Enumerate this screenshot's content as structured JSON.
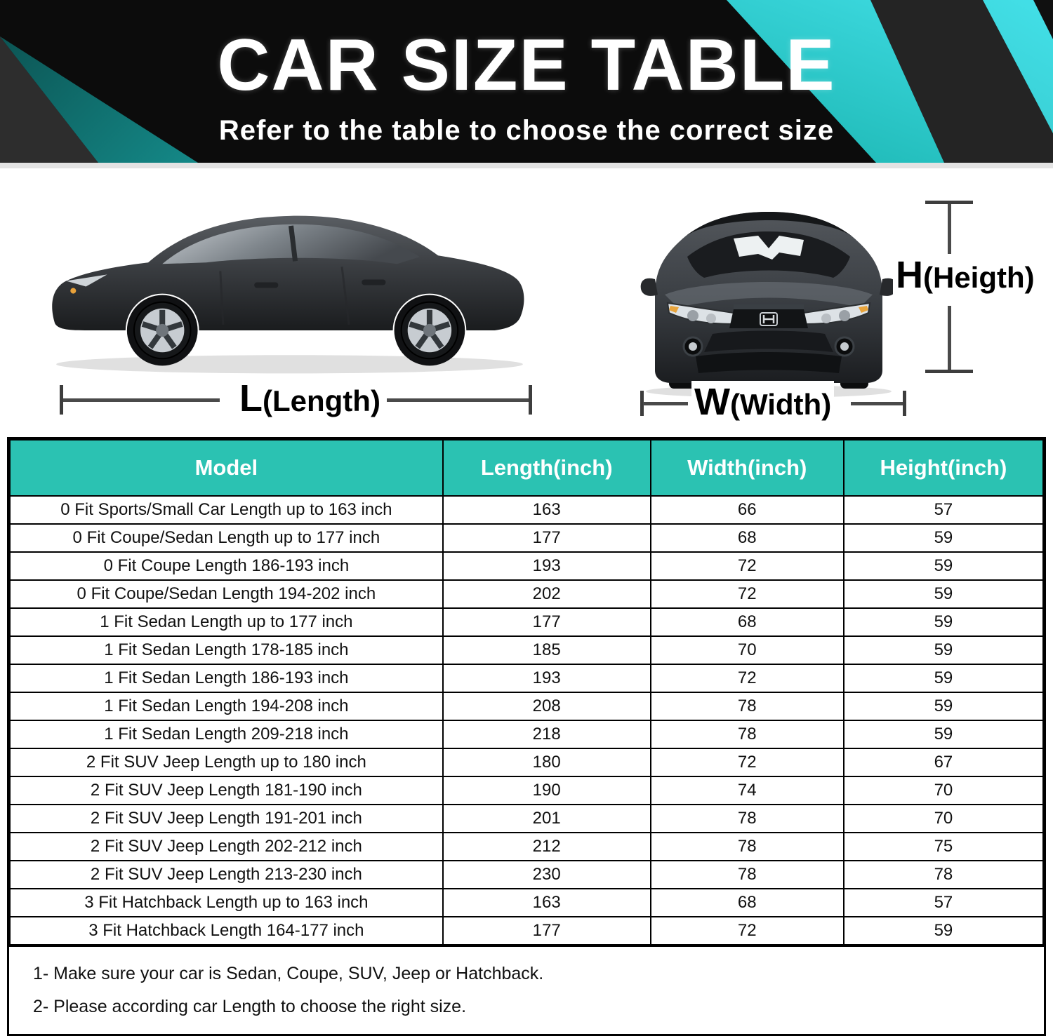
{
  "colors": {
    "accent_teal": "#2bc2b2",
    "banner_background": "#0c0c0c",
    "banner_stripe_teal": "#2fd0dc"
  },
  "banner": {
    "title": "CAR SIZE TABLE",
    "subtitle": "Refer to the table to choose the correct size"
  },
  "diagram": {
    "length_label": {
      "prefix": "L",
      "text": "(Length)"
    },
    "width_label": {
      "prefix": "W",
      "text": "(Width)"
    },
    "height_label": {
      "prefix": "H",
      "text": "(Heigth)"
    }
  },
  "chart_data": {
    "type": "table",
    "title": "CAR SIZE TABLE",
    "columns": [
      "Model",
      "Length(inch)",
      "Width(inch)",
      "Height(inch)"
    ],
    "rows": [
      [
        "0 Fit Sports/Small Car Length up to 163 inch",
        "163",
        "66",
        "57"
      ],
      [
        "0 Fit Coupe/Sedan Length up to 177 inch",
        "177",
        "68",
        "59"
      ],
      [
        "0 Fit Coupe Length 186-193 inch",
        "193",
        "72",
        "59"
      ],
      [
        "0 Fit Coupe/Sedan Length 194-202 inch",
        "202",
        "72",
        "59"
      ],
      [
        "1 Fit Sedan Length up to 177 inch",
        "177",
        "68",
        "59"
      ],
      [
        "1 Fit Sedan Length 178-185 inch",
        "185",
        "70",
        "59"
      ],
      [
        "1 Fit Sedan Length 186-193 inch",
        "193",
        "72",
        "59"
      ],
      [
        "1 Fit Sedan Length 194-208 inch",
        "208",
        "78",
        "59"
      ],
      [
        "1 Fit Sedan Length 209-218 inch",
        "218",
        "78",
        "59"
      ],
      [
        "2 Fit SUV Jeep Length up to 180 inch",
        "180",
        "72",
        "67"
      ],
      [
        "2 Fit SUV Jeep Length 181-190 inch",
        "190",
        "74",
        "70"
      ],
      [
        "2 Fit SUV Jeep Length 191-201 inch",
        "201",
        "78",
        "70"
      ],
      [
        "2 Fit SUV Jeep Length 202-212 inch",
        "212",
        "78",
        "75"
      ],
      [
        "2 Fit SUV Jeep Length 213-230 inch",
        "230",
        "78",
        "78"
      ],
      [
        "3 Fit Hatchback Length up to 163 inch",
        "163",
        "68",
        "57"
      ],
      [
        "3 Fit Hatchback Length 164-177 inch",
        "177",
        "72",
        "59"
      ]
    ],
    "notes": [
      "1- Make sure your car is Sedan, Coupe, SUV, Jeep or Hatchback.",
      "2- Please according car Length to choose the right size."
    ]
  }
}
